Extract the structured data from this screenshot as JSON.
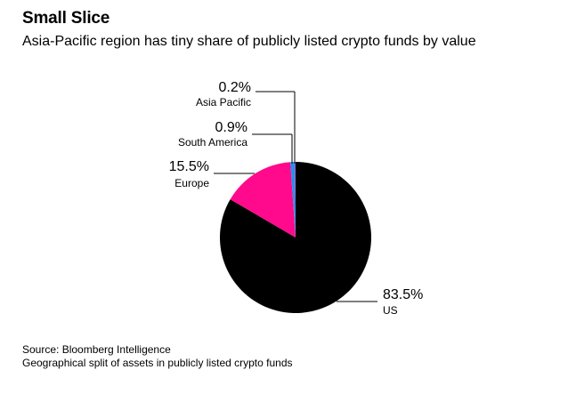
{
  "chart_data": {
    "type": "pie",
    "title": "Small Slice",
    "subtitle": "Asia-Pacific region has tiny share of publicly listed crypto funds by value",
    "slices": [
      {
        "label": "US",
        "value": 83.5,
        "value_label": "83.5%",
        "color": "#000000"
      },
      {
        "label": "Europe",
        "value": 15.5,
        "value_label": "15.5%",
        "color": "#ff0a8c"
      },
      {
        "label": "South America",
        "value": 0.9,
        "value_label": "0.9%",
        "color": "#2b8fe8"
      },
      {
        "label": "Asia Pacific",
        "value": 0.2,
        "value_label": "0.2%",
        "color": "#8e5fd6"
      }
    ],
    "legend": "none"
  },
  "footer": {
    "source": "Source: Bloomberg Intelligence",
    "note": "Geographical split of assets in publicly listed crypto funds"
  }
}
